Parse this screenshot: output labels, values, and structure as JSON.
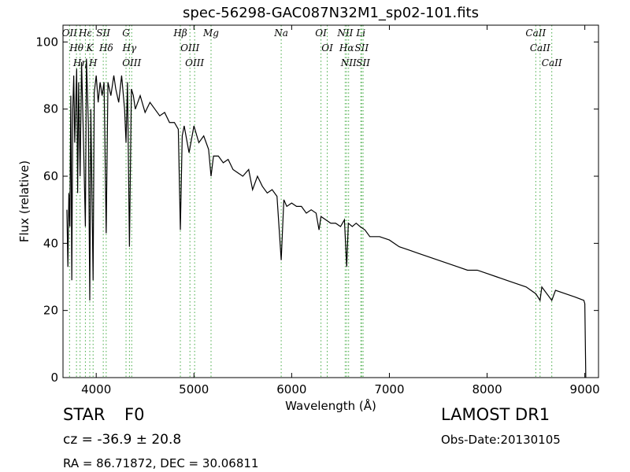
{
  "chart_data": {
    "type": "line",
    "title": "spec-56298-GAC087N32M1_sp02-101.fits",
    "x_label": "Wavelength (Å)",
    "y_label": "Flux (relative)",
    "xlim": [
      3660,
      9140
    ],
    "ylim": [
      0,
      105
    ],
    "xticks": [
      4000,
      5000,
      6000,
      7000,
      8000,
      9000
    ],
    "yticks": [
      0,
      20,
      40,
      60,
      80,
      100
    ],
    "grid": false,
    "color": "#000000",
    "line_marker_color": "#44aa44",
    "x": [
      3700,
      3710,
      3720,
      3730,
      3740,
      3750,
      3760,
      3770,
      3780,
      3800,
      3810,
      3820,
      3835,
      3850,
      3870,
      3889,
      3900,
      3920,
      3934,
      3945,
      3968,
      3980,
      4000,
      4020,
      4040,
      4060,
      4080,
      4102,
      4120,
      4150,
      4180,
      4200,
      4230,
      4260,
      4290,
      4305,
      4320,
      4340,
      4360,
      4380,
      4400,
      4450,
      4500,
      4550,
      4600,
      4650,
      4700,
      4750,
      4800,
      4840,
      4861,
      4880,
      4900,
      4950,
      5000,
      5050,
      5100,
      5150,
      5175,
      5200,
      5250,
      5300,
      5350,
      5400,
      5450,
      5500,
      5560,
      5600,
      5650,
      5700,
      5750,
      5800,
      5850,
      5893,
      5920,
      5950,
      6000,
      6050,
      6100,
      6150,
      6200,
      6250,
      6280,
      6300,
      6350,
      6400,
      6450,
      6500,
      6540,
      6563,
      6580,
      6620,
      6660,
      6700,
      6750,
      6800,
      6900,
      7000,
      7100,
      7200,
      7300,
      7400,
      7500,
      7600,
      7700,
      7800,
      7900,
      8000,
      8100,
      8200,
      8300,
      8400,
      8498,
      8542,
      8560,
      8662,
      8700,
      8800,
      8900,
      8990,
      9000,
      9010
    ],
    "values": [
      50,
      33,
      55,
      45,
      84,
      29,
      80,
      90,
      70,
      92,
      55,
      88,
      60,
      94,
      70,
      45,
      95,
      75,
      23,
      80,
      29,
      85,
      90,
      82,
      88,
      84,
      88,
      43,
      88,
      84,
      90,
      86,
      82,
      90,
      80,
      70,
      88,
      39,
      86,
      84,
      80,
      84,
      79,
      82,
      80,
      78,
      79,
      76,
      76,
      74,
      44,
      72,
      75,
      67,
      75,
      70,
      72,
      68,
      60,
      66,
      66,
      64,
      65,
      62,
      61,
      60,
      62,
      56,
      60,
      57,
      55,
      56,
      54,
      35,
      53,
      51,
      52,
      51,
      51,
      49,
      50,
      49,
      44,
      48,
      47,
      46,
      46,
      45,
      47,
      33,
      46,
      45,
      46,
      45,
      44,
      42,
      42,
      41,
      39,
      38,
      37,
      36,
      35,
      34,
      33,
      32,
      32,
      31,
      30,
      29,
      28,
      27,
      25,
      23,
      27,
      23,
      26,
      25,
      24,
      23,
      22,
      0
    ],
    "spectral_lines": [
      {
        "label": "OII",
        "wavelength": 3727
      },
      {
        "label": "Hθ",
        "wavelength": 3798
      },
      {
        "label": "Hη",
        "wavelength": 3835
      },
      {
        "label": "Hε",
        "wavelength": 3889
      },
      {
        "label": "K",
        "wavelength": 3934
      },
      {
        "label": "H",
        "wavelength": 3968
      },
      {
        "label": "SII",
        "wavelength": 4072
      },
      {
        "label": "Hδ",
        "wavelength": 4102
      },
      {
        "label": "G",
        "wavelength": 4305
      },
      {
        "label": "Hγ",
        "wavelength": 4340
      },
      {
        "label": "OIII",
        "wavelength": 4363
      },
      {
        "label": "Hβ",
        "wavelength": 4861
      },
      {
        "label": "OIII",
        "wavelength": 4959
      },
      {
        "label": "OIII",
        "wavelength": 5007
      },
      {
        "label": "Mg",
        "wavelength": 5175
      },
      {
        "label": "Na",
        "wavelength": 5893
      },
      {
        "label": "OI",
        "wavelength": 6300
      },
      {
        "label": "OI",
        "wavelength": 6364
      },
      {
        "label": "NII",
        "wavelength": 6548
      },
      {
        "label": "Hα",
        "wavelength": 6563
      },
      {
        "label": "NII",
        "wavelength": 6583
      },
      {
        "label": "Li",
        "wavelength": 6708
      },
      {
        "label": "SII",
        "wavelength": 6716
      },
      {
        "label": "SII",
        "wavelength": 6731
      },
      {
        "label": "CaII",
        "wavelength": 8498
      },
      {
        "label": "CaII",
        "wavelength": 8542
      },
      {
        "label": "CaII",
        "wavelength": 8662
      }
    ],
    "object_class": "STAR",
    "subclass": "F0",
    "redshift_text": "cz = -36.9 ± 20.8",
    "coords_text": "RA = 86.71872, DEC = 30.06811",
    "survey": "LAMOST DR1",
    "obs_date": "Obs-Date:20130105"
  }
}
